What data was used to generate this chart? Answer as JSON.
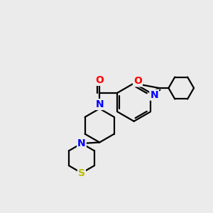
{
  "bg_color": "#ebebeb",
  "bond_color": "#000000",
  "bond_width": 1.6,
  "atom_colors": {
    "N": "#0000ff",
    "O": "#ff0000",
    "S": "#bbbb00",
    "C": "#000000"
  },
  "font_size_atom": 10,
  "fig_size": [
    3.0,
    3.0
  ],
  "dpi": 100
}
